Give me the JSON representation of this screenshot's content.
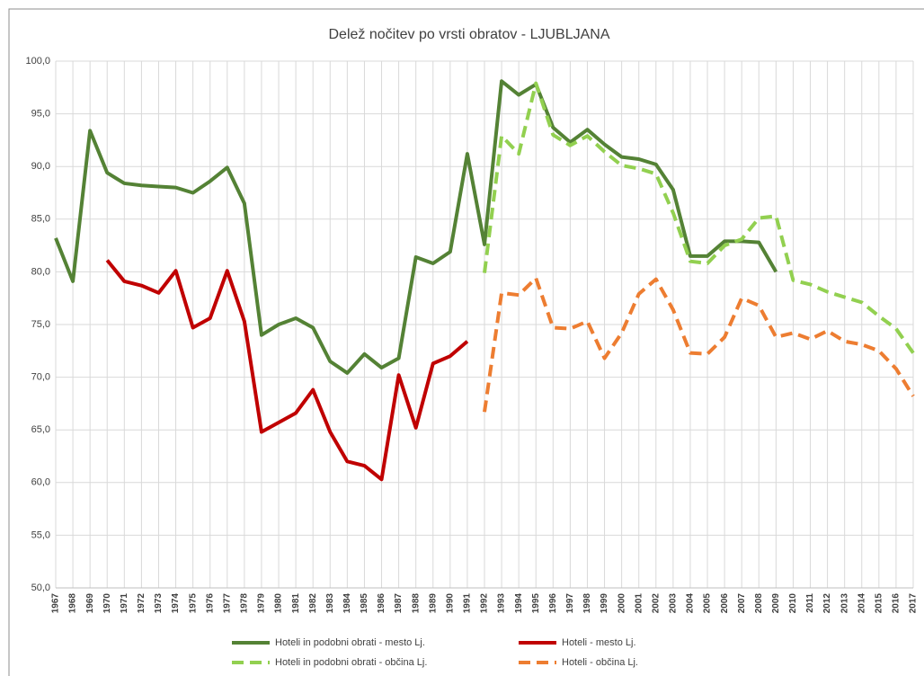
{
  "chart_data": {
    "type": "line",
    "title": "Delež nočitev po vrsti obratov - LJUBLJANA",
    "x": [
      1967,
      1968,
      1969,
      1970,
      1971,
      1972,
      1973,
      1974,
      1975,
      1976,
      1977,
      1978,
      1979,
      1980,
      1981,
      1982,
      1983,
      1984,
      1985,
      1986,
      1987,
      1988,
      1989,
      1990,
      1991,
      1992,
      1993,
      1994,
      1995,
      1996,
      1997,
      1998,
      1999,
      2000,
      2001,
      2002,
      2003,
      2004,
      2005,
      2006,
      2007,
      2008,
      2009,
      2010,
      2011,
      2012,
      2013,
      2014,
      2015,
      2016,
      2017
    ],
    "xlim": [
      1967,
      2017
    ],
    "ylim": [
      50,
      100
    ],
    "yticks": [
      {
        "value": 50,
        "label": "50,0"
      },
      {
        "value": 55,
        "label": "55,0"
      },
      {
        "value": 60,
        "label": "60,0"
      },
      {
        "value": 65,
        "label": "65,0"
      },
      {
        "value": 70,
        "label": "70,0"
      },
      {
        "value": 75,
        "label": "75,0"
      },
      {
        "value": 80,
        "label": "80,0"
      },
      {
        "value": 85,
        "label": "85,0"
      },
      {
        "value": 90,
        "label": "90,0"
      },
      {
        "value": 95,
        "label": "95,0"
      },
      {
        "value": 100,
        "label": "100,0"
      }
    ],
    "grid": true,
    "legend": "bottom",
    "series": [
      {
        "name": "Hoteli in podobni obrati - mesto Lj.",
        "color": "#548235",
        "dashed": false,
        "values": [
          83.2,
          79.1,
          93.4,
          89.4,
          88.4,
          88.2,
          88.1,
          88.0,
          87.5,
          88.6,
          89.9,
          86.5,
          74.0,
          75.0,
          75.6,
          74.7,
          71.5,
          70.4,
          72.2,
          70.9,
          71.8,
          81.4,
          80.8,
          81.9,
          91.2,
          82.6,
          98.1,
          96.8,
          97.8,
          93.7,
          92.3,
          93.5,
          92.1,
          90.9,
          90.7,
          90.2,
          87.8,
          81.5,
          81.5,
          82.9,
          82.9,
          82.8,
          80.0,
          null,
          null,
          null,
          null,
          null,
          null,
          null,
          null
        ]
      },
      {
        "name": "Hoteli - mesto Lj.",
        "color": "#c00000",
        "dashed": false,
        "values": [
          null,
          null,
          null,
          81.1,
          79.1,
          78.7,
          78.0,
          80.1,
          74.7,
          75.6,
          80.1,
          75.3,
          64.8,
          65.7,
          66.6,
          68.8,
          64.8,
          62.0,
          61.6,
          60.3,
          70.2,
          65.2,
          71.3,
          72.0,
          73.4,
          null,
          null,
          null,
          null,
          null,
          null,
          null,
          null,
          null,
          null,
          null,
          null,
          null,
          null,
          null,
          null,
          null,
          null,
          null,
          null,
          null,
          null,
          null,
          null,
          null,
          null
        ]
      },
      {
        "name": "Hoteli in podobni obrati - občina Lj.",
        "color": "#92d050",
        "dashed": true,
        "values": [
          null,
          null,
          null,
          null,
          null,
          null,
          null,
          null,
          null,
          null,
          null,
          null,
          null,
          null,
          null,
          null,
          null,
          null,
          null,
          null,
          null,
          null,
          null,
          null,
          null,
          79.9,
          92.9,
          91.2,
          97.9,
          93.0,
          92.0,
          92.9,
          91.4,
          90.1,
          89.8,
          89.3,
          85.6,
          81.0,
          80.8,
          82.5,
          83.1,
          85.1,
          85.3,
          79.2,
          78.8,
          78.1,
          77.6,
          77.1,
          75.8,
          74.6,
          72.3
        ]
      },
      {
        "name": "Hoteli - občina Lj.",
        "color": "#ed7d31",
        "dashed": true,
        "values": [
          null,
          null,
          null,
          null,
          null,
          null,
          null,
          null,
          null,
          null,
          null,
          null,
          null,
          null,
          null,
          null,
          null,
          null,
          null,
          null,
          null,
          null,
          null,
          null,
          null,
          66.7,
          78.0,
          77.8,
          79.4,
          74.7,
          74.6,
          75.3,
          71.8,
          74.2,
          77.9,
          79.3,
          76.4,
          72.3,
          72.2,
          73.8,
          77.5,
          76.8,
          73.8,
          74.2,
          73.6,
          74.4,
          73.4,
          73.1,
          72.5,
          70.8,
          68.2
        ]
      }
    ]
  }
}
